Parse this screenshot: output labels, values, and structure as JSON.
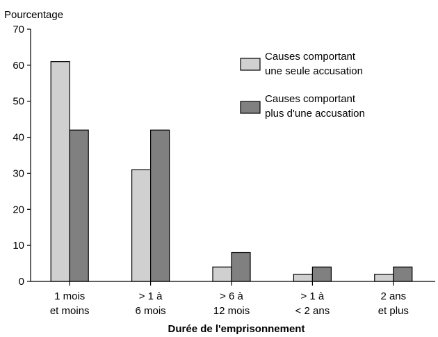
{
  "chart_data": {
    "type": "bar",
    "title": "",
    "ylabel": "Pourcentage",
    "xlabel": "Durée de l'emprisonnement",
    "ylim": [
      0,
      70
    ],
    "yticks": [
      0,
      10,
      20,
      30,
      40,
      50,
      60,
      70
    ],
    "categories": [
      [
        "1 mois",
        "et moins"
      ],
      [
        "> 1 à",
        "6 mois"
      ],
      [
        "> 6 à",
        "12 mois"
      ],
      [
        "> 1 à",
        "< 2 ans"
      ],
      [
        "2 ans",
        "et plus"
      ]
    ],
    "series": [
      {
        "name": [
          "Causes comportant",
          "une seule accusation"
        ],
        "color": "#d0d0d0",
        "values": [
          61,
          31,
          4,
          2,
          2
        ]
      },
      {
        "name": [
          "Causes comportant",
          "plus d'une accusation"
        ],
        "color": "#808080",
        "values": [
          42,
          42,
          8,
          4,
          4
        ]
      }
    ],
    "legend_position": "top-right",
    "grid": false
  }
}
